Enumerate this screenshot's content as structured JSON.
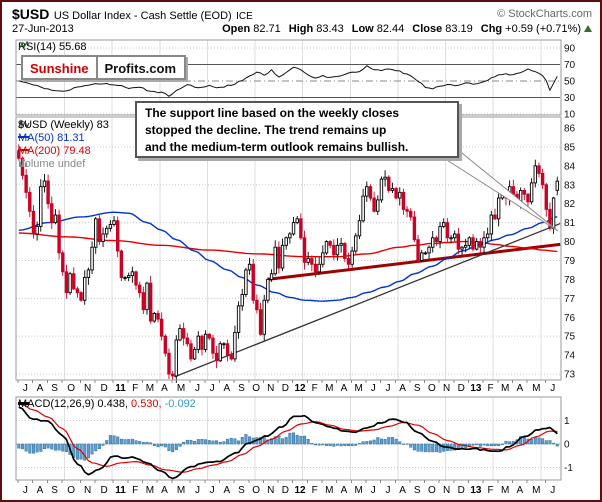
{
  "header": {
    "symbol": "$USD",
    "title": "US Dollar Index - Cash Settle (EOD)",
    "exchange": "ICE",
    "copyright": "© StockCharts.com",
    "date": "27-Jun-2013",
    "open_label": "Open",
    "open": "82.71",
    "high_label": "High",
    "high": "83.43",
    "low_label": "Low",
    "low": "82.44",
    "close_label": "Close",
    "close": "83.19",
    "chg_label": "Chg",
    "chg": "+0.59 (+0.71%)"
  },
  "logo": {
    "part1": "Sunshine",
    "part2": "Profits.com"
  },
  "annotation": {
    "line1": "The support line based on the weekly closes",
    "line2": "stopped the decline. The trend remains up",
    "line3": "and the medium-term outlook remains bullish."
  },
  "rsi_panel": {
    "label": "RSI(14) 55.68"
  },
  "price_panel": {
    "legend_symbol": "$USD (Weekly) 83",
    "legend_ma50": "MA(50) 81.31",
    "legend_ma200": "MA(200) 79.48",
    "legend_volume": "Volume undef"
  },
  "macd_panel": {
    "legend_name": "MACD(12,26,9)",
    "legend_v1": "0.438,",
    "legend_v2": "0.530,",
    "legend_v3": "-0.092"
  },
  "chart_data": {
    "type": "candlestick",
    "timeframe": "weekly",
    "title": "$USD US Dollar Index - Cash Settle (EOD) ICE",
    "x_axis": {
      "month_labels": [
        "J",
        "A",
        "S",
        "O",
        "N",
        "D",
        "11",
        "F",
        "M",
        "A",
        "M",
        "J",
        "J",
        "A",
        "S",
        "O",
        "N",
        "D",
        "12",
        "F",
        "M",
        "A",
        "M",
        "J",
        "J",
        "A",
        "S",
        "O",
        "N",
        "D",
        "13",
        "F",
        "M",
        "A",
        "M",
        "J"
      ],
      "weeks_per_month": [
        4,
        4,
        4,
        5,
        4,
        5,
        4,
        4,
        4,
        4,
        5,
        4,
        4,
        4,
        4,
        4,
        4,
        4,
        4,
        4,
        4,
        4,
        4,
        4,
        4,
        4,
        4,
        4,
        4,
        4,
        4,
        4,
        4,
        4,
        5,
        4
      ]
    },
    "price": {
      "ylim": [
        72.7,
        86.6
      ],
      "yticks": [
        73,
        74,
        75,
        76,
        77,
        78,
        79,
        80,
        81,
        82,
        83,
        84,
        85,
        86
      ],
      "grid_values": [
        73,
        75,
        77,
        79,
        81,
        83,
        85
      ],
      "weekly_closes": [
        84.4,
        83.5,
        82.6,
        81.6,
        80.4,
        80.8,
        82.9,
        83.2,
        82.0,
        81.0,
        81.4,
        79.4,
        78.4,
        77.3,
        78.3,
        77.5,
        77.3,
        76.9,
        78.1,
        78.5,
        79.7,
        81.2,
        80.0,
        80.4,
        80.7,
        80.9,
        81.1,
        79.5,
        78.1,
        78.1,
        78.2,
        78.4,
        77.7,
        77.3,
        76.4,
        77.8,
        75.8,
        76.2,
        75.9,
        75.0,
        74.1,
        73.0,
        72.9,
        74.8,
        75.4,
        74.9,
        74.6,
        73.8,
        74.3,
        75.0,
        74.3,
        75.1,
        74.9,
        74.1,
        73.7,
        74.6,
        74.6,
        74.0,
        73.8,
        75.2,
        76.6,
        77.2,
        78.5,
        78.8,
        76.9,
        76.4,
        75.1,
        76.9,
        78.0,
        78.3,
        79.7,
        78.6,
        79.8,
        80.2,
        80.4,
        81.0,
        81.2,
        80.2,
        78.9,
        79.1,
        78.8,
        78.4,
        78.8,
        79.4,
        80.0,
        79.8,
        79.3,
        79.8,
        79.9,
        79.1,
        78.8,
        79.5,
        80.3,
        81.1,
        82.4,
        82.9,
        82.3,
        81.6,
        82.2,
        83.3,
        83.4,
        82.7,
        82.8,
        82.3,
        82.6,
        81.7,
        81.6,
        81.3,
        80.1,
        79.0,
        79.4,
        79.4,
        79.7,
        80.2,
        80.0,
        80.8,
        81.0,
        80.2,
        80.2,
        80.4,
        79.6,
        79.7,
        79.8,
        80.2,
        79.6,
        80.0,
        79.7,
        80.2,
        80.4,
        81.4,
        81.2,
        82.3,
        82.7,
        82.3,
        82.9,
        82.5,
        82.1,
        82.7,
        82.5,
        82.1,
        83.1,
        84.0,
        83.6,
        83.0,
        81.7,
        80.7,
        82.3,
        83.19
      ],
      "first_open": 84.8,
      "last_week_ohlc": {
        "open": 82.71,
        "high": 83.43,
        "low": 82.44,
        "close": 83.19
      },
      "ma50_points": [
        [
          0,
          80.6
        ],
        [
          8,
          81.0
        ],
        [
          17,
          81.3
        ],
        [
          26,
          81.55
        ],
        [
          30,
          81.5
        ],
        [
          35,
          81.0
        ],
        [
          39,
          80.6
        ],
        [
          43,
          80.1
        ],
        [
          48,
          79.5
        ],
        [
          52,
          79.0
        ],
        [
          57,
          78.5
        ],
        [
          61,
          78.1
        ],
        [
          65,
          77.7
        ],
        [
          70,
          77.3
        ],
        [
          74,
          77.05
        ],
        [
          78,
          76.9
        ],
        [
          83,
          76.85
        ],
        [
          87,
          76.9
        ],
        [
          91,
          77.05
        ],
        [
          95,
          77.3
        ],
        [
          100,
          77.6
        ],
        [
          104,
          77.9
        ],
        [
          108,
          78.3
        ],
        [
          113,
          78.7
        ],
        [
          117,
          79.1
        ],
        [
          121,
          79.5
        ],
        [
          126,
          79.85
        ],
        [
          130,
          80.1
        ],
        [
          134,
          80.35
        ],
        [
          139,
          80.7
        ],
        [
          143,
          81.0
        ],
        [
          147,
          81.31
        ]
      ],
      "ma200_points": [
        [
          0,
          80.45
        ],
        [
          13,
          80.25
        ],
        [
          26,
          80.05
        ],
        [
          39,
          79.8
        ],
        [
          52,
          79.55
        ],
        [
          65,
          79.35
        ],
        [
          78,
          79.2
        ],
        [
          87,
          79.2
        ],
        [
          95,
          79.35
        ],
        [
          104,
          79.7
        ],
        [
          108,
          79.8
        ],
        [
          113,
          79.9
        ],
        [
          117,
          79.95
        ],
        [
          121,
          80.0
        ],
        [
          126,
          79.95
        ],
        [
          130,
          79.85
        ],
        [
          134,
          79.75
        ],
        [
          139,
          79.65
        ],
        [
          143,
          79.55
        ],
        [
          147,
          79.48
        ]
      ],
      "support_line": {
        "w1": 42.5,
        "v1": 72.85,
        "w2": 147.8,
        "v2": 80.95
      },
      "trend_line": {
        "w1": 68,
        "v1": 78.0,
        "w2": 147.8,
        "v2": 79.85
      }
    },
    "rsi": {
      "period": 14,
      "last": 55.68,
      "yticks": [
        90,
        70,
        50,
        30,
        10
      ],
      "overbought": 70,
      "midline": 50,
      "oversold": 30,
      "points": [
        [
          0,
          50
        ],
        [
          4,
          46
        ],
        [
          9,
          39
        ],
        [
          13,
          38
        ],
        [
          17,
          44
        ],
        [
          21,
          47
        ],
        [
          25,
          46
        ],
        [
          28,
          44
        ],
        [
          30,
          41
        ],
        [
          33,
          42
        ],
        [
          36,
          38
        ],
        [
          39,
          36
        ],
        [
          41,
          32
        ],
        [
          44,
          40
        ],
        [
          46,
          45
        ],
        [
          49,
          41
        ],
        [
          52,
          44
        ],
        [
          55,
          42
        ],
        [
          58,
          45
        ],
        [
          61,
          50
        ],
        [
          63,
          56
        ],
        [
          65,
          61
        ],
        [
          67,
          57
        ],
        [
          69,
          63
        ],
        [
          71,
          55
        ],
        [
          73,
          60
        ],
        [
          75,
          66
        ],
        [
          77,
          64
        ],
        [
          79,
          57
        ],
        [
          81,
          53
        ],
        [
          83,
          56
        ],
        [
          85,
          54
        ],
        [
          87,
          56
        ],
        [
          89,
          58
        ],
        [
          91,
          60
        ],
        [
          93,
          62
        ],
        [
          95,
          68
        ],
        [
          97,
          64
        ],
        [
          99,
          62
        ],
        [
          101,
          65
        ],
        [
          103,
          63
        ],
        [
          105,
          60
        ],
        [
          107,
          57
        ],
        [
          109,
          50
        ],
        [
          111,
          43
        ],
        [
          113,
          40
        ],
        [
          115,
          44
        ],
        [
          117,
          46
        ],
        [
          119,
          44
        ],
        [
          121,
          46
        ],
        [
          123,
          48
        ],
        [
          125,
          46
        ],
        [
          127,
          50
        ],
        [
          129,
          53
        ],
        [
          131,
          57
        ],
        [
          133,
          58
        ],
        [
          135,
          57
        ],
        [
          137,
          60
        ],
        [
          139,
          64
        ],
        [
          141,
          61
        ],
        [
          143,
          56
        ],
        [
          144,
          50
        ],
        [
          145,
          38
        ],
        [
          146,
          47
        ],
        [
          147,
          55.68
        ]
      ]
    },
    "macd": {
      "params": "12,26,9",
      "values": {
        "macd": 0.438,
        "signal": 0.53,
        "hist": -0.092
      },
      "yticks": [
        1,
        0,
        -1
      ],
      "macd_points": [
        [
          0,
          1.55
        ],
        [
          4,
          1.05
        ],
        [
          8,
          0.95
        ],
        [
          12,
          0.35
        ],
        [
          16,
          -0.85
        ],
        [
          19,
          -1.3
        ],
        [
          22,
          -1.05
        ],
        [
          26,
          -0.5
        ],
        [
          29,
          -0.62
        ],
        [
          31,
          -0.55
        ],
        [
          35,
          -0.8
        ],
        [
          39,
          -1.15
        ],
        [
          42,
          -1.45
        ],
        [
          47,
          -0.95
        ],
        [
          51,
          -0.8
        ],
        [
          55,
          -0.72
        ],
        [
          59,
          -0.4
        ],
        [
          63,
          0.05
        ],
        [
          68,
          0.35
        ],
        [
          72,
          0.75
        ],
        [
          75,
          1.15
        ],
        [
          78,
          1.2
        ],
        [
          81,
          0.9
        ],
        [
          85,
          0.72
        ],
        [
          89,
          0.55
        ],
        [
          92,
          0.5
        ],
        [
          95,
          0.68
        ],
        [
          99,
          0.92
        ],
        [
          102,
          1.05
        ],
        [
          105,
          0.95
        ],
        [
          109,
          0.5
        ],
        [
          113,
          0.1
        ],
        [
          116,
          -0.1
        ],
        [
          120,
          -0.2
        ],
        [
          124,
          -0.2
        ],
        [
          128,
          -0.27
        ],
        [
          131,
          -0.3
        ],
        [
          134,
          -0.1
        ],
        [
          138,
          0.32
        ],
        [
          142,
          0.62
        ],
        [
          145,
          0.68
        ],
        [
          147,
          0.438
        ]
      ],
      "signal_points": [
        [
          0,
          1.75
        ],
        [
          4,
          1.45
        ],
        [
          8,
          1.15
        ],
        [
          12,
          0.65
        ],
        [
          16,
          -0.2
        ],
        [
          20,
          -0.8
        ],
        [
          24,
          -0.95
        ],
        [
          28,
          -0.8
        ],
        [
          32,
          -0.75
        ],
        [
          36,
          -0.9
        ],
        [
          40,
          -1.1
        ],
        [
          45,
          -1.2
        ],
        [
          49,
          -1.05
        ],
        [
          53,
          -0.9
        ],
        [
          57,
          -0.75
        ],
        [
          61,
          -0.45
        ],
        [
          65,
          -0.1
        ],
        [
          69,
          0.2
        ],
        [
          73,
          0.55
        ],
        [
          77,
          0.85
        ],
        [
          81,
          0.95
        ],
        [
          85,
          0.8
        ],
        [
          89,
          0.62
        ],
        [
          93,
          0.55
        ],
        [
          97,
          0.6
        ],
        [
          101,
          0.75
        ],
        [
          105,
          0.92
        ],
        [
          109,
          0.8
        ],
        [
          113,
          0.45
        ],
        [
          117,
          0.15
        ],
        [
          121,
          -0.05
        ],
        [
          125,
          -0.15
        ],
        [
          129,
          -0.22
        ],
        [
          133,
          -0.25
        ],
        [
          137,
          -0.05
        ],
        [
          141,
          0.3
        ],
        [
          145,
          0.55
        ],
        [
          147,
          0.53
        ]
      ]
    },
    "colors": {
      "candle_up": "#ffffff",
      "candle_up_border": "#000000",
      "candle_down": "#cc0022",
      "ma50": "#0033cc",
      "ma200": "#e60000",
      "support_line": "#333333",
      "trend_line": "#a00000",
      "rsi_line": "#111111",
      "macd_line": "#000000",
      "macd_signal": "#dd0000",
      "macd_hist_fill": "#5b9cd6",
      "macd_hist_border": "#31708f",
      "grid": "#c9c9c9",
      "panel_border": "#999999"
    }
  }
}
